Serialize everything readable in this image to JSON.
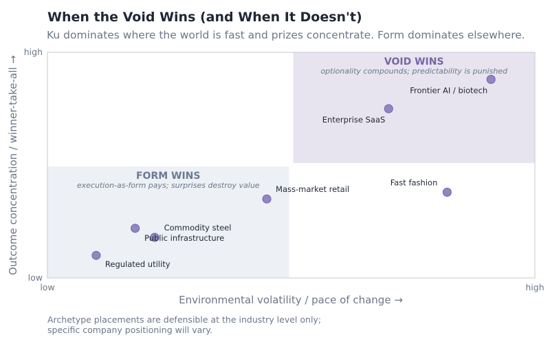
{
  "chart_data": {
    "type": "scatter",
    "title": "When the Void Wins (and When It Doesn't)",
    "subtitle": "Ku dominates where the world is fast and prizes concentrate. Form dominates elsewhere.",
    "xlabel": "Environmental volatility / pace of change  →",
    "ylabel": "Outcome concentration / winner-take-all  →",
    "xlim": [
      0,
      1
    ],
    "ylim": [
      0,
      1
    ],
    "x_ticks": [
      {
        "value": 0,
        "label": "low"
      },
      {
        "value": 1,
        "label": "high"
      }
    ],
    "y_ticks": [
      {
        "value": 0,
        "label": "low"
      },
      {
        "value": 1,
        "label": "high"
      }
    ],
    "grid": false,
    "regions": [
      {
        "id": "void",
        "title": "VOID WINS",
        "subtitle": "optionality compounds; predictability is punished",
        "x": [
          0.5,
          1.0
        ],
        "y": [
          0.5,
          1.0
        ],
        "fill": "#e8e4ef",
        "title_color": "#7467a6"
      },
      {
        "id": "form",
        "title": "FORM WINS",
        "subtitle": "execution-as-form pays; surprises destroy value",
        "x": [
          0.0,
          0.5
        ],
        "y": [
          0.0,
          0.5
        ],
        "fill": "#edf0f5",
        "title_color": "#6b7a94"
      }
    ],
    "points": [
      {
        "label": "Frontier AI / biotech",
        "x": 0.91,
        "y": 0.88,
        "label_pos": "below-left"
      },
      {
        "label": "Enterprise SaaS",
        "x": 0.7,
        "y": 0.75,
        "label_pos": "below-left"
      },
      {
        "label": "Fast fashion",
        "x": 0.82,
        "y": 0.38,
        "label_pos": "above-left"
      },
      {
        "label": "Mass-market retail",
        "x": 0.45,
        "y": 0.35,
        "label_pos": "above-right"
      },
      {
        "label": "Commodity steel",
        "x": 0.18,
        "y": 0.22,
        "label_pos": "right"
      },
      {
        "label": "Public infrastructure",
        "x": 0.22,
        "y": 0.18,
        "label_pos": "right-low"
      },
      {
        "label": "Regulated utility",
        "x": 0.1,
        "y": 0.1,
        "label_pos": "below-right"
      }
    ],
    "point_color": "#9285c4",
    "point_stroke": "#6e62a8"
  },
  "footnote": [
    "Archetype placements are defensible at the industry level only;",
    "specific company positioning will vary."
  ]
}
